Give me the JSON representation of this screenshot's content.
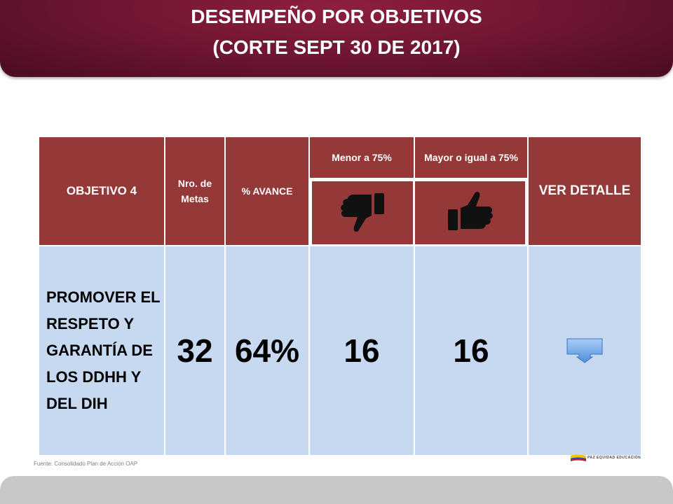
{
  "header": {
    "title_line1": "DESEMPEÑO POR OBJETIVOS",
    "title_line2": "(CORTE SEPT 30 DE 2017)"
  },
  "table": {
    "headers": {
      "objetivo": "OBJETIVO 4",
      "nro_metas": "Nro. de Metas",
      "avance": "% AVANCE",
      "menor": "Menor a  75%",
      "mayor": "Mayor o igual a 75%",
      "ver_detalle": "VER DETALLE"
    },
    "icons": {
      "menor": "thumbs-down-icon",
      "mayor": "thumbs-up-icon",
      "detalle": "down-arrow-callout-icon"
    },
    "row": {
      "objetivo": "PROMOVER EL RESPETO Y GARANTÍA DE LOS DDHH Y DEL DIH",
      "nro_metas": "32",
      "avance": "64%",
      "menor": "16",
      "mayor": "16"
    },
    "colors": {
      "header_bg": "#943838",
      "body_bg": "#c6d9f1"
    }
  },
  "footer": {
    "source": "Fuente: Consolidado Plan de Acción OAP",
    "logo_text": "PAZ   EQUIDAD   EDUCACIÓN"
  }
}
